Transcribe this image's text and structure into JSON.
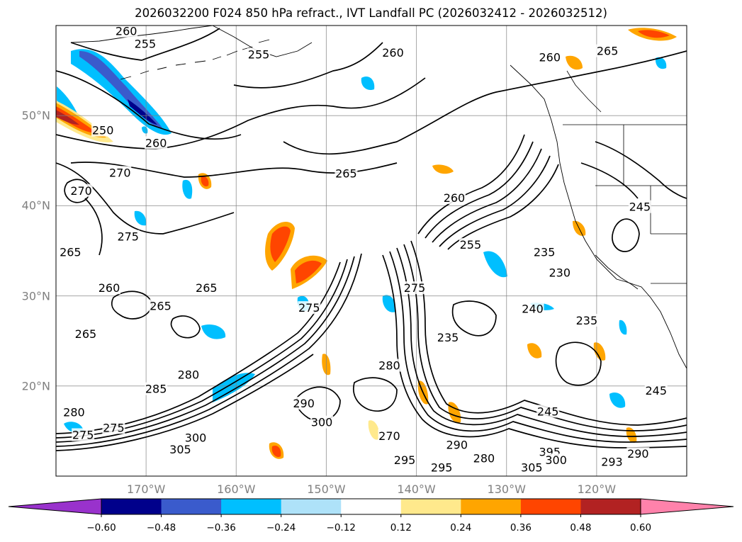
{
  "title": "2026032200 F024 850 hPa refract., IVT Landfall PC (2026032412 - 2026032512)",
  "map": {
    "projection": "cylindrical",
    "lon_range": [
      -180,
      -110
    ],
    "lat_range": [
      10,
      60
    ],
    "gridlines": true,
    "coastlines": true
  },
  "lat_labels": [
    {
      "lat": 50,
      "text": "50°N"
    },
    {
      "lat": 40,
      "text": "40°N"
    },
    {
      "lat": 30,
      "text": "30°N"
    },
    {
      "lat": 20,
      "text": "20°N"
    }
  ],
  "lon_labels": [
    {
      "lon": -170,
      "text": "170°W"
    },
    {
      "lon": -160,
      "text": "160°W"
    },
    {
      "lon": -150,
      "text": "150°W"
    },
    {
      "lon": -140,
      "text": "140°W"
    },
    {
      "lon": -130,
      "text": "130°W"
    },
    {
      "lon": -120,
      "text": "120°W"
    }
  ],
  "contour_labels": [
    {
      "text": "260",
      "lon": -172.2,
      "lat": 59.4
    },
    {
      "text": "255",
      "lon": -170.1,
      "lat": 58.0
    },
    {
      "text": "255",
      "lon": -157.5,
      "lat": 56.8
    },
    {
      "text": "260",
      "lon": -142.6,
      "lat": 57.0
    },
    {
      "text": "260",
      "lon": -125.2,
      "lat": 56.5
    },
    {
      "text": "265",
      "lon": -118.8,
      "lat": 57.2
    },
    {
      "text": "250",
      "lon": -174.8,
      "lat": 48.4
    },
    {
      "text": "260",
      "lon": -168.9,
      "lat": 47.0
    },
    {
      "text": "270",
      "lon": -172.9,
      "lat": 43.7
    },
    {
      "text": "270",
      "lon": -177.2,
      "lat": 41.7
    },
    {
      "text": "265",
      "lon": -147.8,
      "lat": 43.6
    },
    {
      "text": "260",
      "lon": -135.8,
      "lat": 40.9
    },
    {
      "text": "245",
      "lon": -115.2,
      "lat": 39.9
    },
    {
      "text": "275",
      "lon": -172.0,
      "lat": 36.6
    },
    {
      "text": "265",
      "lon": -178.4,
      "lat": 34.9
    },
    {
      "text": "255",
      "lon": -134.0,
      "lat": 35.7
    },
    {
      "text": "235",
      "lon": -125.8,
      "lat": 34.9
    },
    {
      "text": "230",
      "lon": -124.1,
      "lat": 32.6
    },
    {
      "text": "260",
      "lon": -174.1,
      "lat": 30.9
    },
    {
      "text": "265",
      "lon": -163.3,
      "lat": 30.9
    },
    {
      "text": "265",
      "lon": -168.4,
      "lat": 28.9
    },
    {
      "text": "275",
      "lon": -151.9,
      "lat": 28.7
    },
    {
      "text": "275",
      "lon": -140.2,
      "lat": 30.9
    },
    {
      "text": "240",
      "lon": -127.1,
      "lat": 28.6
    },
    {
      "text": "235",
      "lon": -121.1,
      "lat": 27.3
    },
    {
      "text": "265",
      "lon": -176.7,
      "lat": 25.8
    },
    {
      "text": "235",
      "lon": -136.5,
      "lat": 25.4
    },
    {
      "text": "280",
      "lon": -143.0,
      "lat": 22.3
    },
    {
      "text": "280",
      "lon": -165.3,
      "lat": 21.3
    },
    {
      "text": "285",
      "lon": -168.9,
      "lat": 19.7
    },
    {
      "text": "290",
      "lon": -152.5,
      "lat": 18.1
    },
    {
      "text": "245",
      "lon": -113.4,
      "lat": 19.5
    },
    {
      "text": "280",
      "lon": -178.0,
      "lat": 17.1
    },
    {
      "text": "275",
      "lon": -177.0,
      "lat": 14.6
    },
    {
      "text": "275",
      "lon": -173.6,
      "lat": 15.4
    },
    {
      "text": "300",
      "lon": -150.5,
      "lat": 16.0
    },
    {
      "text": "300",
      "lon": -164.5,
      "lat": 14.3
    },
    {
      "text": "305",
      "lon": -166.2,
      "lat": 13.0
    },
    {
      "text": "270",
      "lon": -143.0,
      "lat": 14.5
    },
    {
      "text": "290",
      "lon": -135.5,
      "lat": 13.5
    },
    {
      "text": "290",
      "lon": -115.4,
      "lat": 12.5
    },
    {
      "text": "295",
      "lon": -141.3,
      "lat": 11.8
    },
    {
      "text": "295",
      "lon": -137.2,
      "lat": 11.0
    },
    {
      "text": "280",
      "lon": -132.5,
      "lat": 12.0
    },
    {
      "text": "395",
      "lon": -125.2,
      "lat": 12.7
    },
    {
      "text": "300",
      "lon": -124.5,
      "lat": 11.8
    },
    {
      "text": "305",
      "lon": -127.2,
      "lat": 11.0
    },
    {
      "text": "293",
      "lon": -118.3,
      "lat": 11.6
    },
    {
      "text": "245",
      "lon": -125.4,
      "lat": 17.2
    }
  ],
  "colorbar": {
    "levels": [
      -0.6,
      -0.48,
      -0.36,
      -0.24,
      -0.12,
      0.12,
      0.24,
      0.36,
      0.48,
      0.6
    ],
    "tick_labels": [
      "−0.60",
      "−0.48",
      "−0.36",
      "−0.24",
      "−0.12",
      "0.12",
      "0.24",
      "0.36",
      "0.48",
      "0.60"
    ],
    "colors": [
      "#9932cc",
      "#00008b",
      "#3a5bcc",
      "#00bfff",
      "#aee2f9",
      "#ffffff",
      "#ffe98c",
      "#ffa500",
      "#ff4500",
      "#b22222",
      "#ff82ab"
    ],
    "extend": "both"
  },
  "fill_colors": {
    "neg_light": "#aee2f9",
    "neg_mid": "#00bfff",
    "neg_strong": "#3a5bcc",
    "neg_max": "#00008b",
    "pos_light": "#ffe98c",
    "pos_mid": "#ffa500",
    "pos_strong": "#ff4500",
    "pos_max": "#b22222"
  }
}
